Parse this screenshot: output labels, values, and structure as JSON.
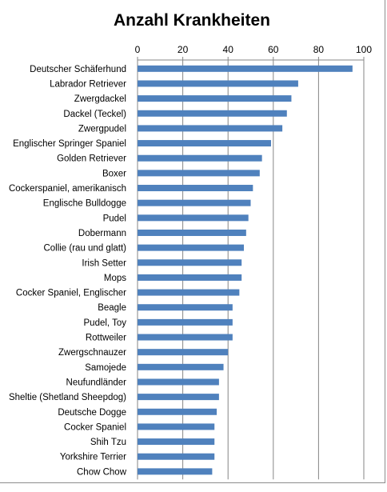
{
  "chart_data": {
    "type": "bar",
    "orientation": "horizontal",
    "title": "Anzahl Krankheiten",
    "xlabel": "",
    "ylabel": "",
    "xlim": [
      0,
      100
    ],
    "xticks": [
      "0",
      "20",
      "40",
      "60",
      "80",
      "100"
    ],
    "tick_values": [
      0,
      20,
      40,
      60,
      80,
      100
    ],
    "axis_position": "top",
    "grid": true,
    "legend": "none",
    "bar_color": "#4f81bd",
    "categories": [
      "Deutscher Schäferhund",
      "Labrador Retriever",
      "Zwergdackel",
      "Dackel (Teckel)",
      "Zwergpudel",
      "Englischer Springer Spaniel",
      "Golden Retriever",
      "Boxer",
      "Cockerspaniel, amerikanisch",
      "Englische Bulldogge",
      "Pudel",
      "Dobermann",
      "Collie (rau und glatt)",
      "Irish Setter",
      "Mops",
      "Cocker Spaniel, Englischer",
      "Beagle",
      "Pudel, Toy",
      "Rottweiler",
      "Zwergschnauzer",
      "Samojede",
      "Neufundländer",
      "Sheltie (Shetland Sheepdog)",
      "Deutsche Dogge",
      "Cocker Spaniel",
      "Shih Tzu",
      "Yorkshire Terrier",
      "Chow Chow"
    ],
    "values": [
      95,
      71,
      68,
      66,
      64,
      59,
      55,
      54,
      51,
      50,
      49,
      48,
      47,
      46,
      46,
      45,
      42,
      42,
      42,
      40,
      38,
      36,
      36,
      35,
      34,
      34,
      34,
      33
    ]
  }
}
